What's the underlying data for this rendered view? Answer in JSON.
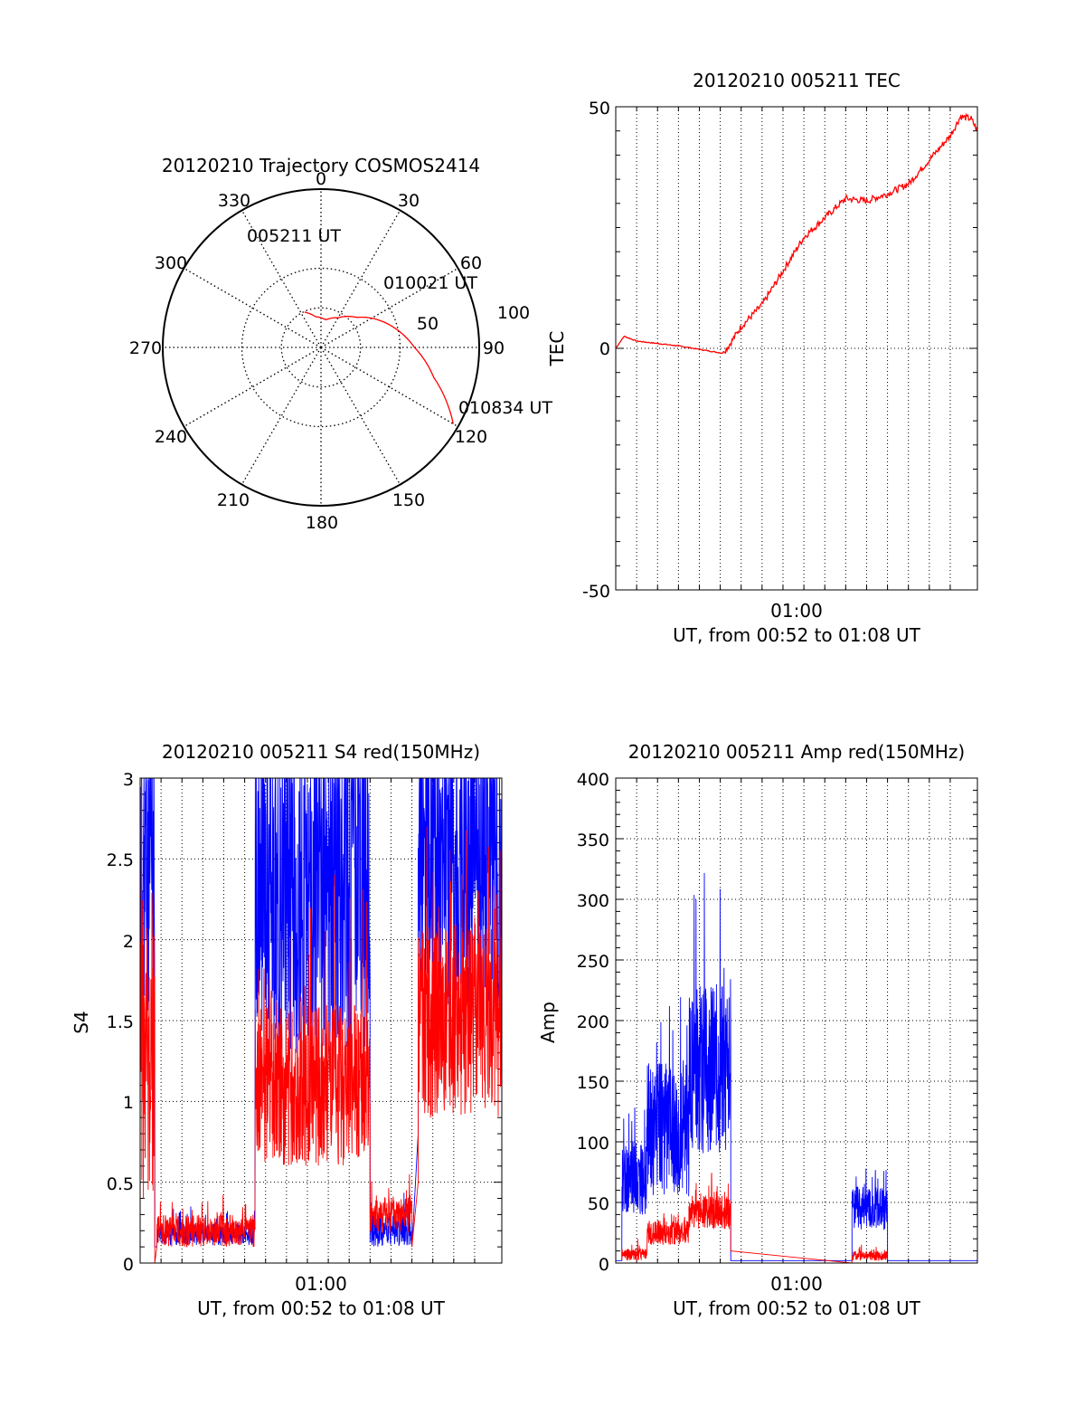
{
  "chart_data": [
    {
      "type": "polar",
      "title": "20120210 Trajectory COSMOS2414",
      "azimuth_labels": [
        "0",
        "30",
        "60",
        "90",
        "120",
        "150",
        "180",
        "210",
        "240",
        "270",
        "300",
        "330"
      ],
      "ring_labels": [
        "50",
        "100"
      ],
      "trajectory": {
        "color": "#ff0000",
        "points": [
          {
            "azimuth": 335,
            "radius": 25
          },
          {
            "azimuth": 350,
            "radius": 20
          },
          {
            "azimuth": 10,
            "radius": 18
          },
          {
            "azimuth": 30,
            "radius": 22
          },
          {
            "azimuth": 50,
            "radius": 30
          },
          {
            "azimuth": 70,
            "radius": 45
          },
          {
            "azimuth": 90,
            "radius": 60
          },
          {
            "azimuth": 105,
            "radius": 75
          },
          {
            "azimuth": 120,
            "radius": 98
          }
        ]
      },
      "annotations": [
        "005211 UT",
        "010021 UT",
        "010834 UT"
      ]
    },
    {
      "type": "line",
      "title": "20120210 005211 TEC",
      "ylabel": "TEC",
      "xlabel": "UT, from 00:52 to 01:08 UT",
      "xtick_label": "01:00",
      "ylim": [
        -50,
        50
      ],
      "yticks": [
        "50",
        "0",
        "-50"
      ],
      "grid": true,
      "series": [
        {
          "color": "#ff0000",
          "values": [
            [
              0.0,
              0
            ],
            [
              0.4,
              2.5
            ],
            [
              1.0,
              1.5
            ],
            [
              3.0,
              0.5
            ],
            [
              5.1,
              -1
            ],
            [
              5.4,
              0.5
            ],
            [
              6.0,
              4.5
            ],
            [
              7.0,
              9
            ],
            [
              8.0,
              16
            ],
            [
              9.0,
              23
            ],
            [
              10.0,
              27
            ],
            [
              11.0,
              31
            ],
            [
              12.0,
              30.5
            ],
            [
              13.0,
              32
            ],
            [
              14.0,
              34
            ],
            [
              15.0,
              39
            ],
            [
              16.0,
              44
            ],
            [
              16.5,
              48
            ],
            [
              17.0,
              47.5
            ],
            [
              17.3,
              45
            ]
          ]
        }
      ]
    },
    {
      "type": "line",
      "title": "20120210 005211 S4 red(150MHz)",
      "ylabel": "S4",
      "xlabel": "UT, from 00:52 to 01:08 UT",
      "xtick_label": "01:00",
      "ylim": [
        0,
        3
      ],
      "yticks": [
        "3",
        "2.5",
        "2",
        "1.5",
        "1",
        "0.5",
        "0"
      ],
      "grid": true,
      "series": [
        {
          "color": "#0000ff",
          "segments": [
            {
              "x0": 0.0,
              "x1": 0.7,
              "mean": 2.4,
              "amp": 0.9,
              "floor": 0.1,
              "ceil": 3.0
            },
            {
              "x0": 0.8,
              "x1": 5.5,
              "mean": 0.18,
              "amp": 0.07,
              "floor": 0.1,
              "ceil": 0.35
            },
            {
              "x0": 5.5,
              "x1": 11.0,
              "mean": 2.3,
              "amp": 1.0,
              "floor": 0.6,
              "ceil": 3.0
            },
            {
              "x0": 11.0,
              "x1": 13.0,
              "mean": 0.2,
              "amp": 0.1,
              "floor": 0.1,
              "ceil": 0.45
            },
            {
              "x0": 13.3,
              "x1": 17.3,
              "mean": 2.5,
              "amp": 0.9,
              "floor": 0.8,
              "ceil": 3.0
            }
          ]
        },
        {
          "color": "#ff0000",
          "segments": [
            {
              "x0": 0.0,
              "x1": 0.7,
              "mean": 1.3,
              "amp": 1.0,
              "floor": 0.0,
              "ceil": 3.0
            },
            {
              "x0": 0.8,
              "x1": 5.5,
              "mean": 0.2,
              "amp": 0.1,
              "floor": 0.1,
              "ceil": 0.6
            },
            {
              "x0": 5.5,
              "x1": 11.0,
              "mean": 1.1,
              "amp": 0.5,
              "floor": 0.5,
              "ceil": 2.6
            },
            {
              "x0": 11.0,
              "x1": 13.0,
              "mean": 0.3,
              "amp": 0.12,
              "floor": 0.1,
              "ceil": 0.55
            },
            {
              "x0": 13.3,
              "x1": 17.3,
              "mean": 1.5,
              "amp": 0.6,
              "floor": 0.5,
              "ceil": 2.7
            }
          ]
        }
      ]
    },
    {
      "type": "line",
      "title": "20120210 005211 Amp red(150MHz)",
      "ylabel": "Amp",
      "xlabel": "UT, from 00:52 to 01:08 UT",
      "xtick_label": "01:00",
      "ylim": [
        0,
        400
      ],
      "yticks": [
        "400",
        "350",
        "300",
        "250",
        "200",
        "150",
        "100",
        "50",
        "0"
      ],
      "grid": true,
      "series": [
        {
          "color": "#0000ff",
          "segments": [
            {
              "x0": 0.0,
              "x1": 0.3,
              "mean": 2,
              "amp": 0,
              "floor": 0,
              "ceil": 5
            },
            {
              "x0": 0.3,
              "x1": 1.5,
              "mean": 70,
              "amp": 30,
              "floor": 20,
              "ceil": 150
            },
            {
              "x0": 1.5,
              "x1": 3.5,
              "mean": 110,
              "amp": 55,
              "floor": 50,
              "ceil": 360
            },
            {
              "x0": 3.5,
              "x1": 5.5,
              "mean": 160,
              "amp": 70,
              "floor": 60,
              "ceil": 345
            },
            {
              "x0": 5.5,
              "x1": 11.3,
              "mean": 2,
              "amp": 0,
              "floor": 0,
              "ceil": 5
            },
            {
              "x0": 11.3,
              "x1": 13.0,
              "mean": 45,
              "amp": 18,
              "floor": 5,
              "ceil": 78
            },
            {
              "x0": 13.0,
              "x1": 17.3,
              "mean": 2,
              "amp": 0,
              "floor": 0,
              "ceil": 5
            }
          ]
        },
        {
          "color": "#ff0000",
          "segments": [
            {
              "x0": 0.3,
              "x1": 1.5,
              "mean": 7,
              "amp": 5,
              "floor": 0,
              "ceil": 20
            },
            {
              "x0": 1.5,
              "x1": 3.5,
              "mean": 25,
              "amp": 10,
              "floor": 5,
              "ceil": 50
            },
            {
              "x0": 3.5,
              "x1": 5.5,
              "mean": 42,
              "amp": 14,
              "floor": 10,
              "ceil": 80
            },
            {
              "x0": 11.3,
              "x1": 13.0,
              "mean": 6,
              "amp": 4,
              "floor": 0,
              "ceil": 16
            }
          ]
        }
      ]
    }
  ]
}
